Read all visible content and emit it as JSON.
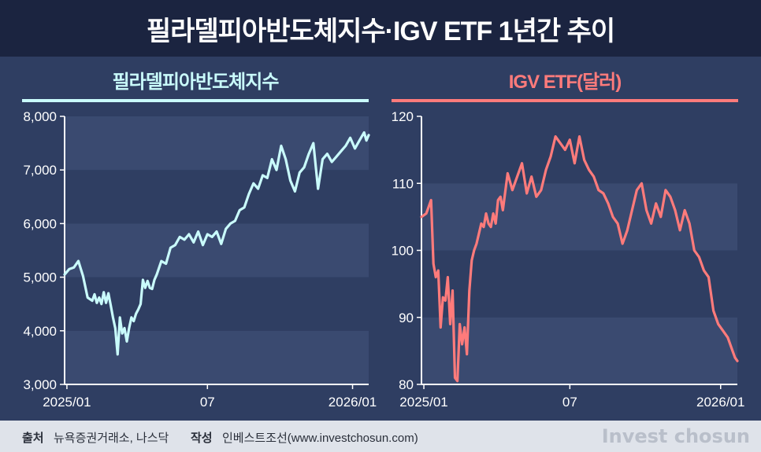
{
  "title": "필라델피아반도체지수·IGV ETF 1년간 추이",
  "footer": {
    "source_label": "출처",
    "source_value": "뉴욕증권거래소, 나스닥",
    "author_label": "작성",
    "author_value": "인베스트조선(www.investchosun.com)",
    "brand": "Invest chosun"
  },
  "colors": {
    "sox": "#c9fbfb",
    "igv": "#ff7b7b",
    "title_bg": "#1b2440",
    "panel_bg": "#2f3e62"
  },
  "chart_data": [
    {
      "type": "line",
      "title": "필라델피아반도체지수",
      "xlabel": "",
      "ylabel": "",
      "ylim": [
        3000,
        8000
      ],
      "yticks": [
        3000,
        4000,
        5000,
        6000,
        7000,
        8000
      ],
      "ytick_labels": [
        "3,000",
        "4,000",
        "5,000",
        "6,000",
        "7,000",
        "8,000"
      ],
      "xticks": [
        2,
        124,
        250
      ],
      "xtick_labels": [
        "2025/01",
        "07",
        "2026/01"
      ],
      "grid": "alternating horizontal bands",
      "series": [
        {
          "x": [
            0,
            4,
            8,
            12,
            16,
            20,
            24,
            26,
            28,
            30,
            32,
            34,
            36,
            38,
            40,
            42,
            44,
            46,
            48,
            50,
            52,
            54,
            56,
            58,
            60,
            62,
            64,
            66,
            68,
            70,
            72,
            74,
            76,
            78,
            80,
            84,
            88,
            92,
            96,
            100,
            104,
            108,
            112,
            116,
            120,
            124,
            128,
            132,
            136,
            140,
            144,
            148,
            152,
            156,
            160,
            164,
            168,
            172,
            176,
            180,
            184,
            188,
            192,
            196,
            200,
            204,
            208,
            212,
            216,
            220,
            224,
            228,
            232,
            236,
            240,
            244,
            248,
            252,
            256,
            260,
            262,
            264
          ],
          "y": [
            5050,
            5150,
            5180,
            5300,
            5020,
            4620,
            4560,
            4680,
            4520,
            4620,
            4500,
            4720,
            4520,
            4700,
            4480,
            4250,
            4050,
            3560,
            4250,
            3950,
            4050,
            3800,
            4050,
            4250,
            4180,
            4320,
            4400,
            4500,
            4950,
            4800,
            4930,
            4800,
            4780,
            4950,
            5050,
            5300,
            5250,
            5550,
            5600,
            5750,
            5700,
            5800,
            5650,
            5850,
            5600,
            5800,
            5750,
            5850,
            5620,
            5900,
            6000,
            6050,
            6250,
            6300,
            6550,
            6750,
            6650,
            6900,
            6850,
            7200,
            7000,
            7450,
            7200,
            6800,
            6600,
            6950,
            7050,
            7300,
            7500,
            6650,
            7200,
            7300,
            7150,
            7250,
            7350,
            7450,
            7600,
            7400,
            7550,
            7700,
            7550,
            7650
          ]
        }
      ]
    },
    {
      "type": "line",
      "title": "IGV ETF(달러)",
      "xlabel": "",
      "ylabel": "",
      "ylim": [
        80,
        120
      ],
      "yticks": [
        80,
        90,
        100,
        110,
        120
      ],
      "ytick_labels": [
        "80",
        "90",
        "100",
        "110",
        "120"
      ],
      "xticks": [
        2,
        124,
        250
      ],
      "xtick_labels": [
        "2025/01",
        "07",
        "2026/01"
      ],
      "grid": "alternating horizontal bands",
      "series": [
        {
          "x": [
            0,
            4,
            8,
            10,
            12,
            14,
            16,
            18,
            20,
            22,
            24,
            26,
            28,
            30,
            32,
            34,
            36,
            38,
            40,
            42,
            44,
            46,
            48,
            50,
            52,
            54,
            56,
            58,
            60,
            62,
            64,
            66,
            68,
            72,
            76,
            80,
            84,
            88,
            92,
            96,
            100,
            104,
            108,
            112,
            116,
            120,
            124,
            128,
            132,
            136,
            140,
            144,
            148,
            152,
            156,
            160,
            164,
            168,
            172,
            176,
            180,
            184,
            188,
            192,
            196,
            200,
            204,
            208,
            212,
            216,
            220,
            224,
            228,
            232,
            236,
            240,
            244,
            248,
            252,
            256,
            260,
            262,
            264
          ],
          "y": [
            105,
            105.5,
            107.5,
            98,
            96,
            97,
            88.5,
            93,
            92.5,
            96,
            89,
            94,
            81,
            80.5,
            89,
            86,
            88.5,
            84.5,
            94,
            98.5,
            100,
            101,
            102.5,
            104,
            103.5,
            105.5,
            104,
            103.5,
            105.5,
            104,
            107.5,
            108,
            106,
            111.5,
            109,
            111,
            113,
            108.5,
            111,
            108,
            109,
            112,
            114,
            117,
            116,
            115,
            116.5,
            113,
            117,
            113.5,
            112,
            111,
            109,
            108.5,
            107,
            105,
            104,
            101,
            103,
            106,
            109,
            110,
            106,
            104,
            107,
            105,
            109,
            108,
            106,
            103,
            106,
            104,
            100,
            99,
            97,
            96,
            91,
            89,
            88,
            87,
            85,
            84,
            83.5
          ]
        }
      ]
    }
  ]
}
